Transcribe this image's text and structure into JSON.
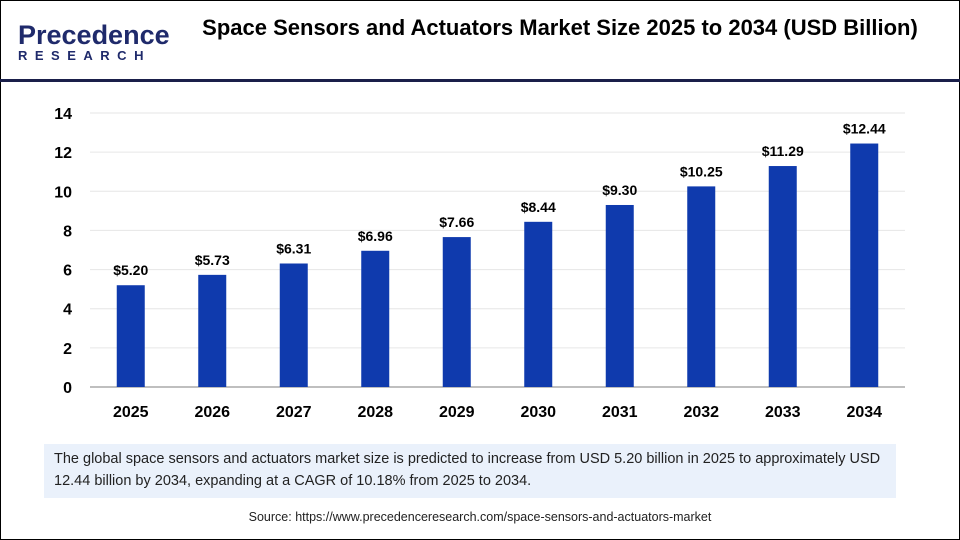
{
  "logo": {
    "line1": "Precedence",
    "line2": "RESEARCH"
  },
  "title": "Space Sensors and Actuators Market Size 2025 to 2034 (USD Billion)",
  "chart_data": {
    "type": "bar",
    "title": "Space Sensors and Actuators Market Size 2025 to 2034 (USD Billion)",
    "categories": [
      "2025",
      "2026",
      "2027",
      "2028",
      "2029",
      "2030",
      "2031",
      "2032",
      "2033",
      "2034"
    ],
    "values": [
      5.2,
      5.73,
      6.31,
      6.96,
      7.66,
      8.44,
      9.3,
      10.25,
      11.29,
      12.44
    ],
    "data_labels": [
      "$5.20",
      "$5.73",
      "$6.31",
      "$6.96",
      "$7.66",
      "$8.44",
      "$9.30",
      "$10.25",
      "$11.29",
      "$12.44"
    ],
    "yticks": [
      "0",
      "2",
      "4",
      "6",
      "8",
      "10",
      "12",
      "14"
    ],
    "ylim": [
      0,
      14
    ],
    "grid": true,
    "bar_color": "#0f3aad",
    "xlabel": "",
    "ylabel": ""
  },
  "note": "The global space sensors and actuators market  size is predicted to increase from USD 5.20 billion in 2025 to approximately USD 12.44 billion by 2034, expanding at a CAGR of 10.18% from 2025 to 2034.",
  "source": "Source: https://www.precedenceresearch.com/space-sensors-and-actuators-market"
}
